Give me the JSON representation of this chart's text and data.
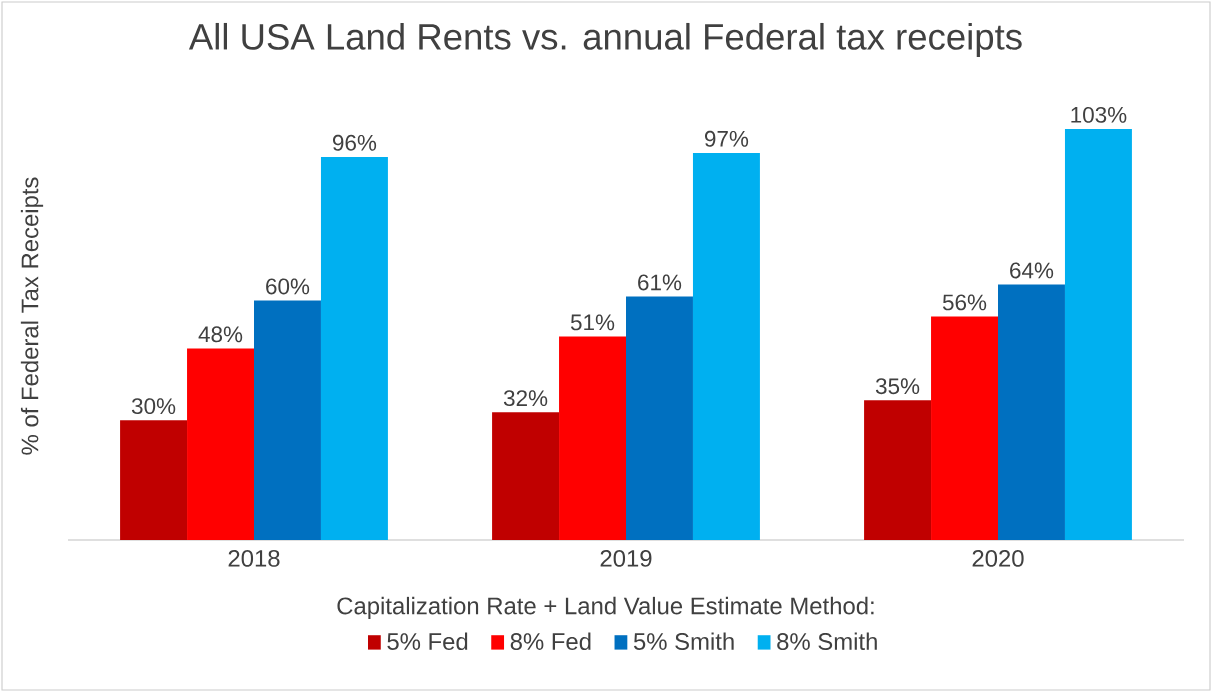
{
  "chart_data": {
    "type": "bar",
    "title": "All USA Land Rents vs. annual Federal tax receipts",
    "ylabel": "% of Federal Tax Receipts",
    "legend_title": "Capitalization Rate + Land Value Estimate Method:",
    "categories": [
      "2018",
      "2019",
      "2020"
    ],
    "series": [
      {
        "name": "5% Fed",
        "color": "#c00000",
        "values": [
          30,
          32,
          35
        ],
        "value_labels": [
          "30%",
          "32%",
          "35%"
        ]
      },
      {
        "name": "8% Fed",
        "color": "#ff0000",
        "values": [
          48,
          51,
          56
        ],
        "value_labels": [
          "48%",
          "51%",
          "56%"
        ]
      },
      {
        "name": "5% Smith",
        "color": "#0070c0",
        "values": [
          60,
          61,
          64
        ],
        "value_labels": [
          "60%",
          "61%",
          "64%"
        ]
      },
      {
        "name": "8% Smith",
        "color": "#00b0f0",
        "values": [
          96,
          97,
          103
        ],
        "value_labels": [
          "96%",
          "97%",
          "103%"
        ]
      }
    ],
    "legend": "bottom"
  }
}
